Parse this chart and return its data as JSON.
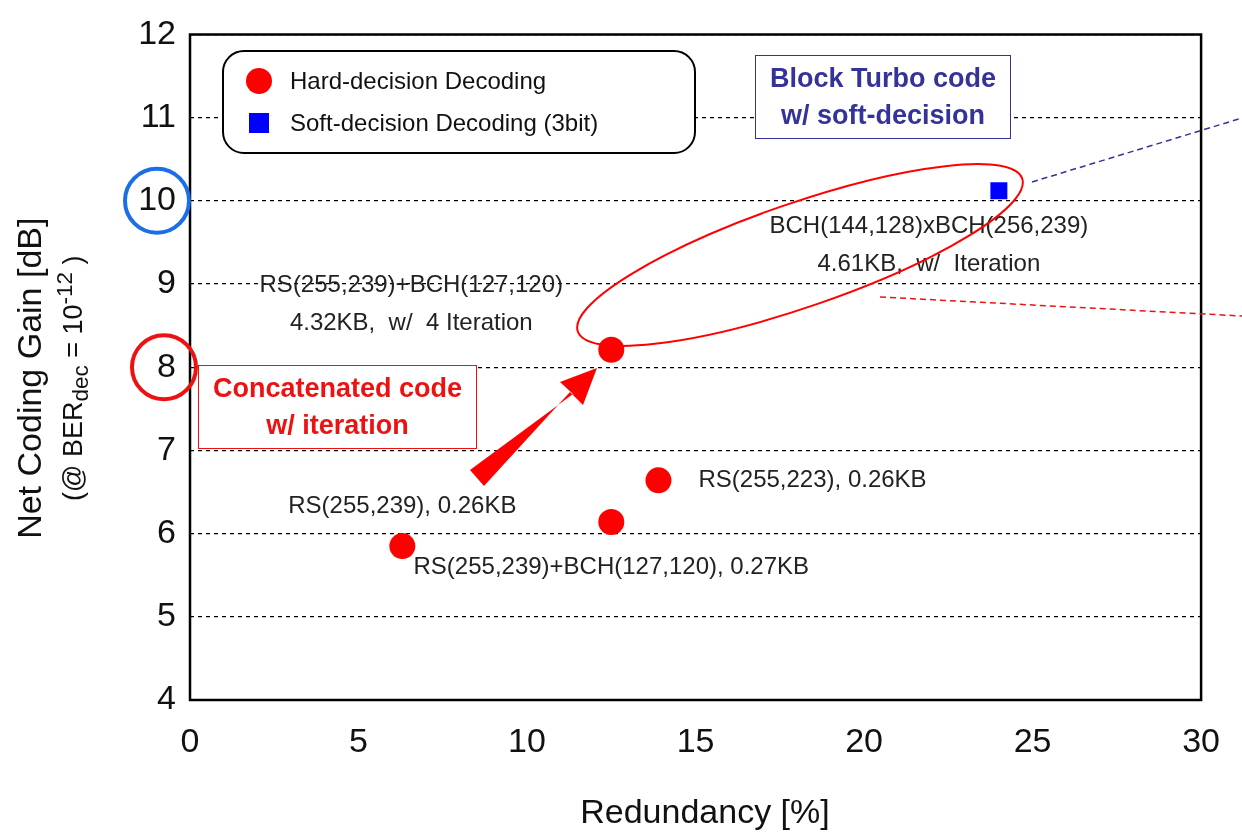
{
  "chart_data": {
    "type": "scatter",
    "xlabel": "Redundancy [%]",
    "ylabel": "Net Coding Gain [dB]\n(@ BER$_{dec}$ = 10$^{-12}$ )",
    "xlim": [
      0,
      30
    ],
    "xticks": [
      0,
      5,
      10,
      15,
      20,
      25,
      30
    ],
    "ylim": [
      4,
      12
    ],
    "yticks": [
      4,
      5,
      6,
      7,
      8,
      9,
      10,
      11,
      12
    ],
    "grid": "y",
    "legend": "top left",
    "series": [
      {
        "name": "Hard-decision Decoding",
        "color": "#ff0000",
        "marker": "circle",
        "x": [
          6.3,
          12.5,
          13.9,
          12.5
        ],
        "values": [
          5.85,
          6.14,
          6.64,
          8.21
        ]
      },
      {
        "name": "Soft-decision Decoding (3bit)",
        "color": "#0000ff",
        "marker": "square",
        "x": [
          24.0
        ],
        "values": [
          10.12
        ]
      }
    ],
    "annotations": [
      {
        "text": "RS(255,239), 0.26KB",
        "x": 6.3,
        "y": 5.85
      },
      {
        "text": "RS(255,239)+BCH(127,120), 0.27KB",
        "x": 12.5,
        "y": 6.14
      },
      {
        "text": "RS(255,223), 0.26KB",
        "x": 13.9,
        "y": 6.64
      },
      {
        "text": "RS(255,239)+BCH(127,120)\n4.32KB,  w/  4 Iteration",
        "x": 12.5,
        "y": 8.21
      },
      {
        "text": "BCH(144,128)xBCH(256,239)\n4.61KB,  w/  Iteration",
        "x": 24.0,
        "y": 10.12
      },
      "Block Turbo code\nw/ soft-decision",
      "Concatenated code\nw/ iteration"
    ]
  }
}
